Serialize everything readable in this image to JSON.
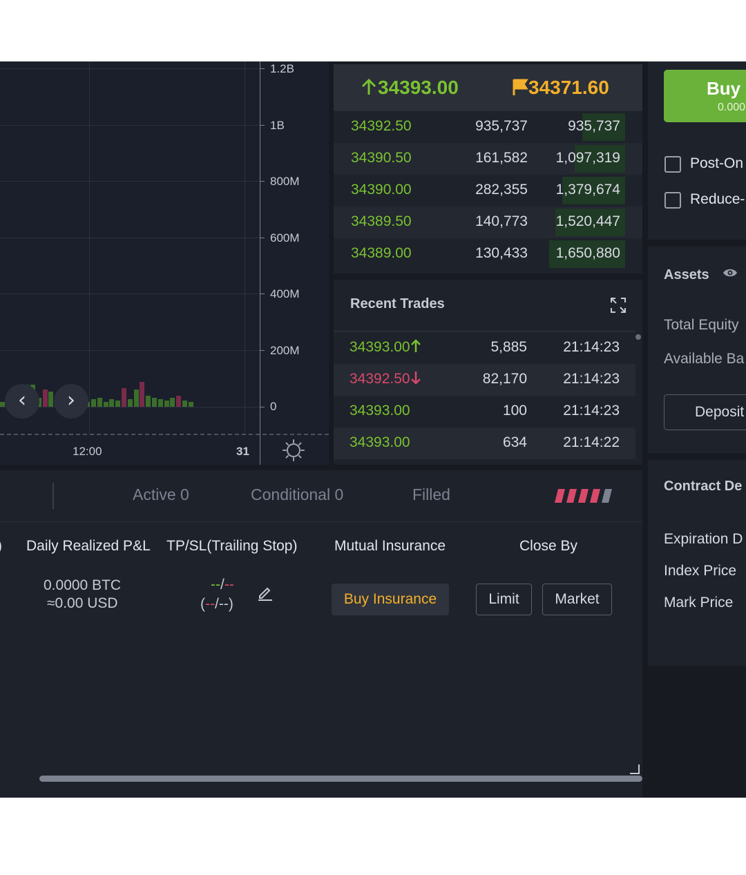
{
  "chart": {
    "y_ticks": [
      "1.2B",
      "1B",
      "800M",
      "600M",
      "400M",
      "200M",
      "0"
    ],
    "x_ticks": [
      "12:00",
      "31"
    ],
    "nav_prev": "‹",
    "nav_next": "›",
    "volume_bars": [
      {
        "v": 8,
        "c": "green"
      },
      {
        "v": 0,
        "c": "green"
      },
      {
        "v": 12,
        "c": "red"
      },
      {
        "v": 20,
        "c": "green"
      },
      {
        "v": 35,
        "c": "green"
      },
      {
        "v": 36,
        "c": "green"
      },
      {
        "v": 14,
        "c": "green"
      },
      {
        "v": 28,
        "c": "red"
      },
      {
        "v": 24,
        "c": "green"
      },
      {
        "v": 8,
        "c": "green"
      },
      {
        "v": 22,
        "c": "green"
      },
      {
        "v": 18,
        "c": "green"
      },
      {
        "v": 28,
        "c": "red"
      },
      {
        "v": 16,
        "c": "red"
      },
      {
        "v": 8,
        "c": "green"
      },
      {
        "v": 12,
        "c": "green"
      },
      {
        "v": 14,
        "c": "green"
      },
      {
        "v": 8,
        "c": "green"
      },
      {
        "v": 12,
        "c": "green"
      },
      {
        "v": 10,
        "c": "green"
      },
      {
        "v": 30,
        "c": "red"
      },
      {
        "v": 12,
        "c": "green"
      },
      {
        "v": 28,
        "c": "green"
      },
      {
        "v": 40,
        "c": "red"
      },
      {
        "v": 18,
        "c": "green"
      },
      {
        "v": 14,
        "c": "green"
      },
      {
        "v": 12,
        "c": "green"
      },
      {
        "v": 10,
        "c": "green"
      },
      {
        "v": 14,
        "c": "green"
      },
      {
        "v": 18,
        "c": "red"
      },
      {
        "v": 10,
        "c": "green"
      },
      {
        "v": 8,
        "c": "green"
      }
    ]
  },
  "orderbook": {
    "last_price": "34393.00",
    "mark_price": "34371.60",
    "rows": [
      {
        "price": "34392.50",
        "size": "935,737",
        "total": "935,737",
        "depth": 0.56
      },
      {
        "price": "34390.50",
        "size": "161,582",
        "total": "1,097,319",
        "depth": 0.66
      },
      {
        "price": "34390.00",
        "size": "282,355",
        "total": "1,379,674",
        "depth": 0.83
      },
      {
        "price": "34389.50",
        "size": "140,773",
        "total": "1,520,447",
        "depth": 0.92
      },
      {
        "price": "34389.00",
        "size": "130,433",
        "total": "1,650,880",
        "depth": 1.0
      }
    ]
  },
  "recent_trades": {
    "title": "Recent Trades",
    "rows": [
      {
        "price": "34393.00",
        "arrow": "up",
        "qty": "5,885",
        "time": "21:14:23"
      },
      {
        "price": "34392.50",
        "arrow": "down",
        "qty": "82,170",
        "time": "21:14:23"
      },
      {
        "price": "34393.00",
        "arrow": "",
        "qty": "100",
        "time": "21:14:23"
      },
      {
        "price": "34393.00",
        "arrow": "",
        "qty": "634",
        "time": "21:14:22"
      }
    ]
  },
  "positions": {
    "tabs": [
      "Active 0",
      "Conditional 0",
      "Filled"
    ],
    "left_edge_char": ")",
    "columns": [
      "Daily Realized P&L",
      "TP/SL(Trailing Stop)",
      "Mutual Insurance",
      "Close By"
    ],
    "pnl_btc": "0.0000 BTC",
    "pnl_usd": "≈0.00 USD",
    "tpsl_line1_a": "--",
    "tpsl_line1_sep": "/",
    "tpsl_line1_b": "--",
    "tpsl_line2_open": "(",
    "tpsl_line2_a": "--",
    "tpsl_line2_rest": "/--)",
    "buy_insurance": "Buy Insurance",
    "limit": "Limit",
    "market": "Market"
  },
  "order_panel": {
    "buy_label": "Buy /",
    "buy_sub": "0.000",
    "post_only": "Post-On",
    "reduce_only": "Reduce-"
  },
  "assets": {
    "title": "Assets",
    "total_equity": "Total Equity",
    "available_balance": "Available Ba",
    "deposit": "Deposit"
  },
  "contract": {
    "title": "Contract De",
    "expiration": "Expiration D",
    "index_price": "Index Price",
    "mark_price": "Mark Price"
  },
  "colors": {
    "green": "#7ac231",
    "red": "#d94a6a",
    "orange": "#f3b02a",
    "bar_green": "#3b6e2a",
    "bar_red": "#7a2a4a"
  }
}
